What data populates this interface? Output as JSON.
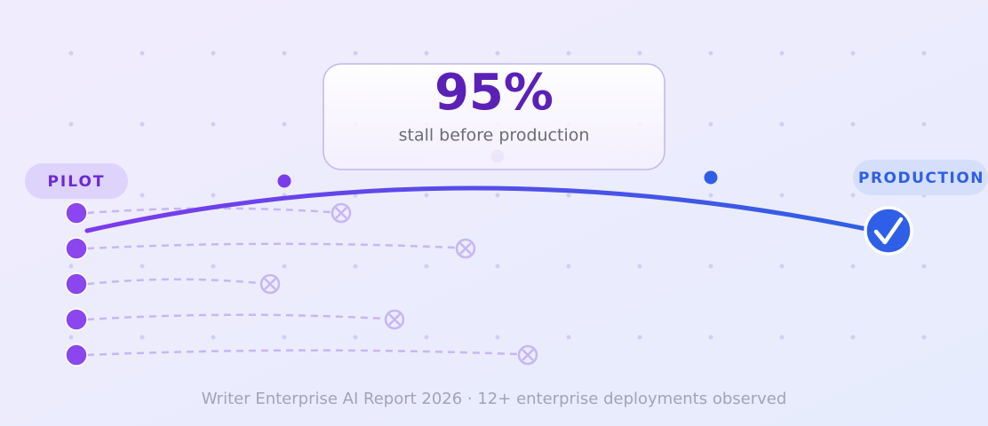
{
  "stat": {
    "value": "95%",
    "caption": "stall before production"
  },
  "labels": {
    "start": "PILOT",
    "end": "PRODUCTION"
  },
  "footer": "Writer Enterprise AI Report 2026 · 12+ enterprise deployments observed"
}
